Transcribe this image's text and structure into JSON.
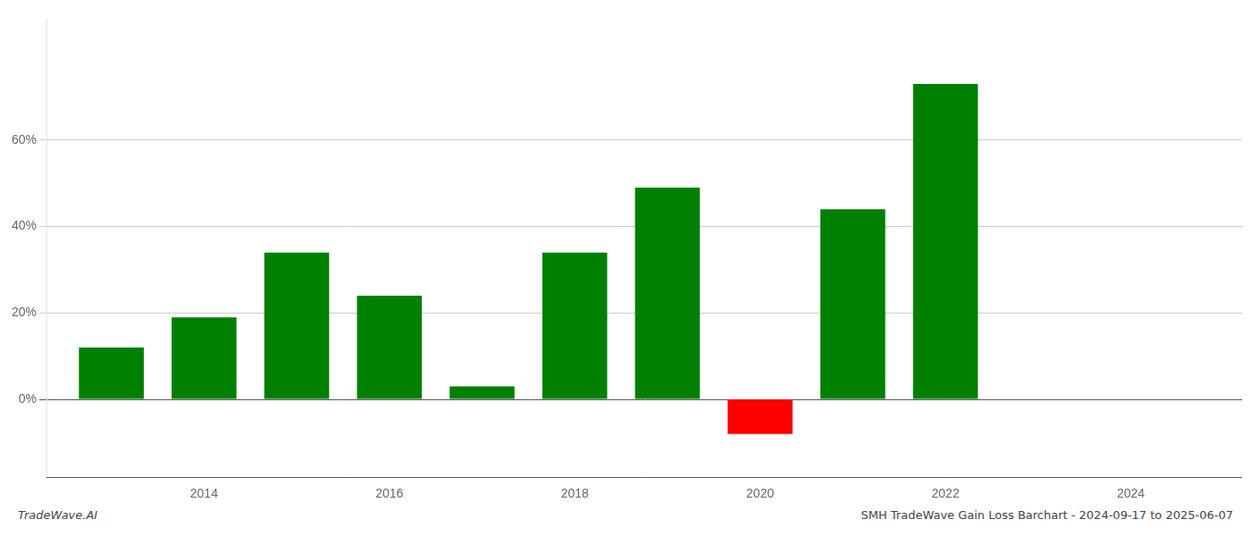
{
  "chart_data": {
    "type": "bar",
    "x": [
      2013,
      2014,
      2015,
      2016,
      2017,
      2018,
      2019,
      2020,
      2021,
      2022
    ],
    "values": [
      0.12,
      0.19,
      0.34,
      0.24,
      0.03,
      0.34,
      0.49,
      -0.08,
      0.44,
      0.73
    ],
    "colors": [
      "#008000",
      "#008000",
      "#008000",
      "#008000",
      "#008000",
      "#008000",
      "#008000",
      "#ff0000",
      "#008000",
      "#008000"
    ],
    "xlim": [
      2012.3,
      2025.2
    ],
    "ylim": [
      -0.18,
      0.88
    ],
    "xticks": [
      2014,
      2016,
      2018,
      2020,
      2022,
      2024
    ],
    "yticks": [
      {
        "value": 0.0,
        "label": "0%"
      },
      {
        "value": 0.2,
        "label": "20%"
      },
      {
        "value": 0.4,
        "label": "40%"
      },
      {
        "value": 0.6,
        "label": "60%"
      }
    ],
    "grid": "y",
    "annotations": [
      "TradeWave.AI",
      "SMH TradeWave Gain Loss Barchart - 2024-09-17 to 2025-06-07"
    ]
  }
}
